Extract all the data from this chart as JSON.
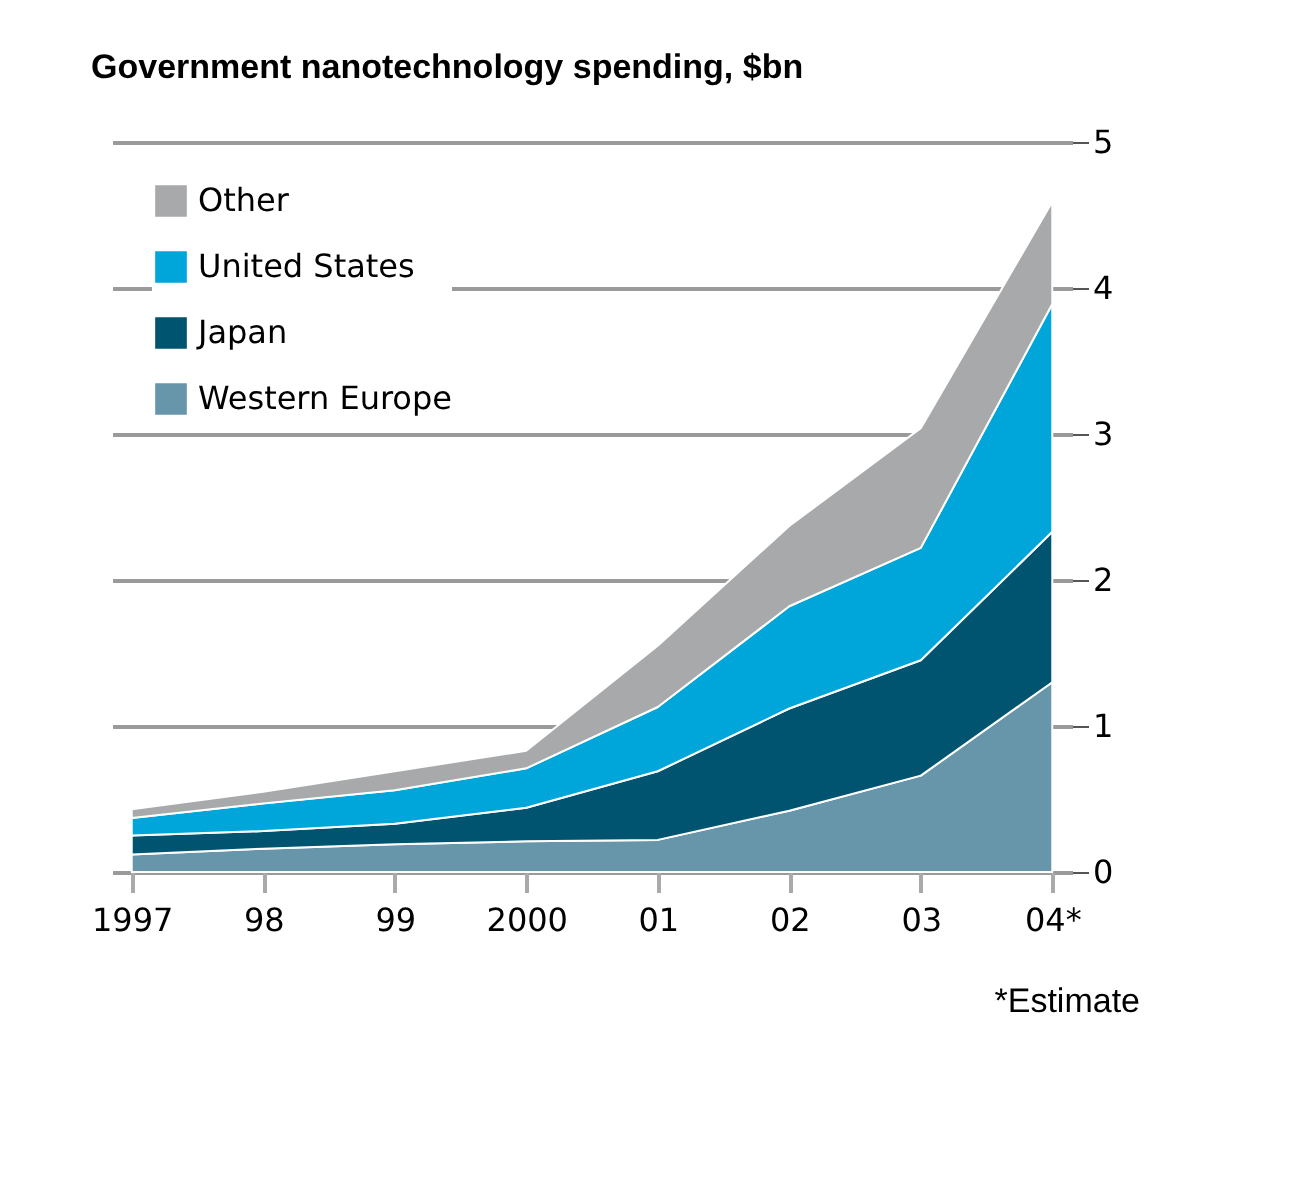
{
  "chart_data": {
    "type": "area",
    "stacked": true,
    "title": "Government nanotechnology spending, $bn",
    "categories": [
      "1997",
      "98",
      "99",
      "2000",
      "01",
      "02",
      "03",
      "04*"
    ],
    "series": [
      {
        "name": "Western Europe",
        "color": "#6796ab",
        "values": [
          0.12,
          0.16,
          0.19,
          0.21,
          0.22,
          0.42,
          0.66,
          1.3
        ]
      },
      {
        "name": "Japan",
        "color": "#00546f",
        "values": [
          0.13,
          0.12,
          0.14,
          0.23,
          0.47,
          0.7,
          0.79,
          1.03
        ]
      },
      {
        "name": "United States",
        "color": "#00a6d9",
        "values": [
          0.12,
          0.19,
          0.23,
          0.27,
          0.44,
          0.7,
          0.77,
          1.56
        ]
      },
      {
        "name": "Other",
        "color": "#a8a9ab",
        "values": [
          0.06,
          0.08,
          0.13,
          0.12,
          0.42,
          0.55,
          0.82,
          0.7
        ]
      }
    ],
    "ylim": [
      0,
      5
    ],
    "yticks": [
      0,
      1,
      2,
      3,
      4,
      5
    ],
    "grid": "y",
    "legend": "top left",
    "annotations": [
      "*Estimate"
    ]
  }
}
